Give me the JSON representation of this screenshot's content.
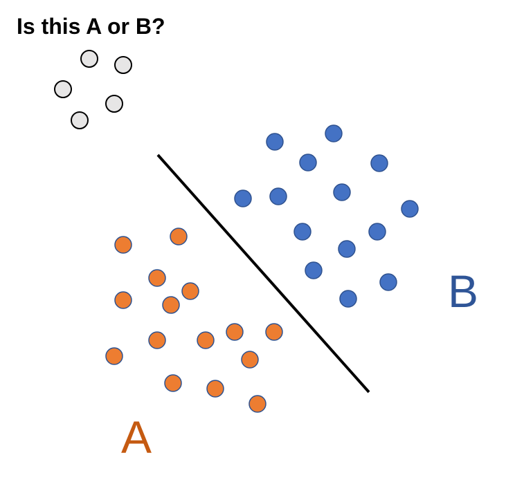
{
  "title": "Is this A or B?",
  "colors": {
    "class_a_fill": "#ED7D31",
    "class_b_fill": "#4472C4",
    "unknown_fill": "#E7E6E6",
    "class_a_label": "#C55A11",
    "class_b_label": "#2F5597",
    "point_stroke_colored": "#2F528F",
    "point_stroke_unknown": "#000000",
    "boundary": "#000000"
  },
  "labels": {
    "class_a": "A",
    "class_b": "B"
  }
}
